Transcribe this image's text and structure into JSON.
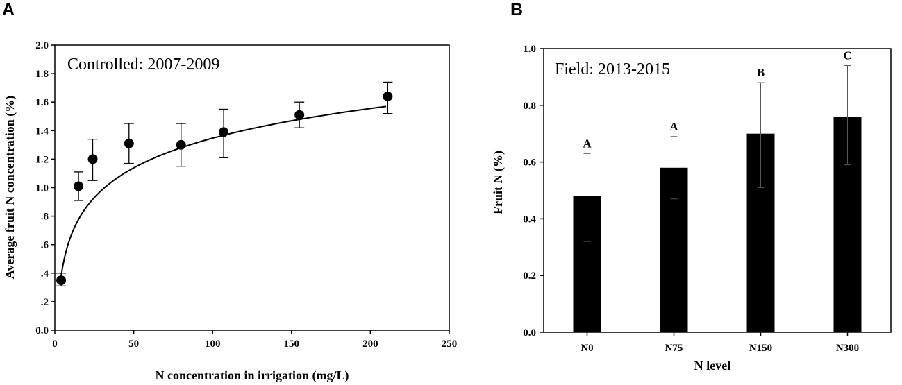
{
  "chart_data": [
    {
      "panel": "A",
      "type": "scatter",
      "title": "Controlled: 2007-2009",
      "xlabel": "N concentration in irrigation (mg/L)",
      "ylabel": "Average fruit N concentration (%)",
      "xlim": [
        0,
        250
      ],
      "ylim": [
        0,
        2.0
      ],
      "xticks": [
        0,
        50,
        100,
        150,
        200,
        250
      ],
      "xtick_labels": [
        "0",
        "50",
        "100",
        "150",
        "200",
        "250"
      ],
      "yticks": [
        0,
        0.2,
        0.4,
        0.6,
        0.8,
        1.0,
        1.2,
        1.4,
        1.6,
        1.8,
        2.0
      ],
      "ytick_labels": [
        "0.0",
        ".2",
        ".4",
        ".6",
        ".8",
        "1.0",
        "1.2",
        "1.4",
        "1.6",
        "1.8",
        "2.0"
      ],
      "grid": false,
      "points": {
        "x": [
          4,
          15,
          24,
          47,
          80,
          107,
          155,
          211
        ],
        "y": [
          0.35,
          1.01,
          1.2,
          1.31,
          1.3,
          1.39,
          1.51,
          1.64
        ],
        "error_low": [
          0.31,
          0.91,
          1.05,
          1.17,
          1.15,
          1.21,
          1.42,
          1.52
        ],
        "error_high": [
          0.4,
          1.11,
          1.34,
          1.45,
          1.45,
          1.55,
          1.6,
          1.74
        ]
      },
      "fit_curve": {
        "model": "logarithmic",
        "x_range": [
          4,
          210
        ],
        "y_at_range": [
          0.38,
          1.57
        ]
      }
    },
    {
      "panel": "B",
      "type": "bar",
      "title": "Field: 2013-2015",
      "xlabel": "N level",
      "ylabel": "Fruit N (%)",
      "ylim": [
        0,
        1.0
      ],
      "yticks": [
        0,
        0.2,
        0.4,
        0.6,
        0.8,
        1.0
      ],
      "ytick_labels": [
        "0.0",
        "0.2",
        "0.4",
        "0.6",
        "0.8",
        "1.0"
      ],
      "grid": false,
      "categories": [
        "N0",
        "N75",
        "N150",
        "N300"
      ],
      "values": [
        0.48,
        0.58,
        0.7,
        0.76
      ],
      "error_low": [
        0.32,
        0.47,
        0.51,
        0.59
      ],
      "error_high": [
        0.63,
        0.69,
        0.88,
        0.94
      ],
      "significance_letters": [
        "A",
        "A",
        "B",
        "C"
      ]
    }
  ]
}
